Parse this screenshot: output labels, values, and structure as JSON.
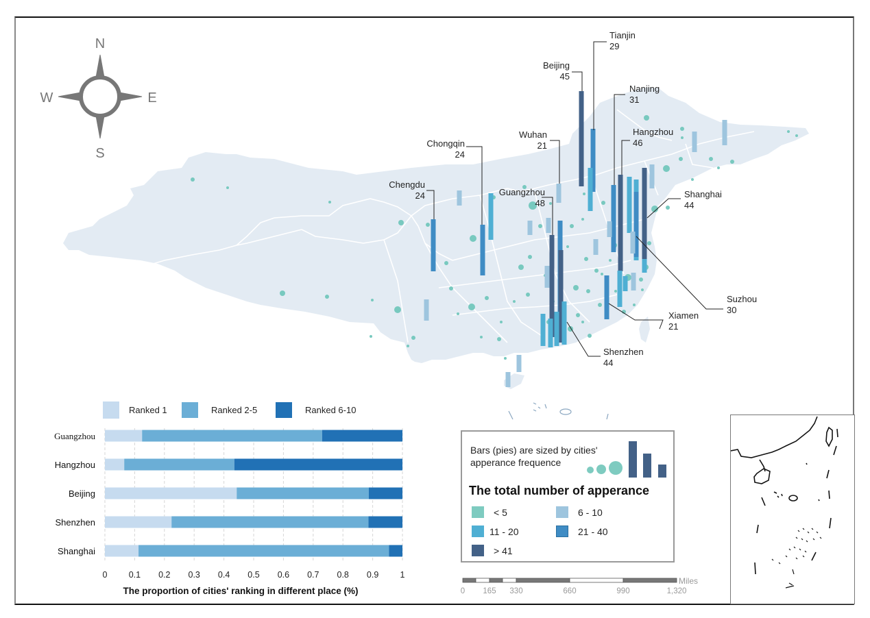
{
  "compass": {
    "north": "N",
    "south": "S",
    "east": "E",
    "west": "W"
  },
  "colors": {
    "land": "#e3ebf3",
    "border": "#ffffff",
    "dot": "#78c9bf",
    "lt5": "#7ecbc0",
    "r6_10": "#9ec5de",
    "r11_20": "#4fafd3",
    "r21_40": "#3f8cc4",
    "gt41": "#436187",
    "rank1": "#c6dbef",
    "rank2_5": "#6baed6",
    "rank6_10": "#2171b5"
  },
  "map": {
    "callouts": [
      {
        "name": "Tianjin",
        "value": "29"
      },
      {
        "name": "Beijing",
        "value": "45"
      },
      {
        "name": "Nanjing",
        "value": "31"
      },
      {
        "name": "Hangzhou",
        "value": "46"
      },
      {
        "name": "Wuhan",
        "value": "21"
      },
      {
        "name": "Chongqin",
        "value": "24"
      },
      {
        "name": "Chengdu",
        "value": "24"
      },
      {
        "name": "Guangzhou",
        "value": "48"
      },
      {
        "name": "Shanghai",
        "value": "44"
      },
      {
        "name": "Suzhou",
        "value": "30"
      },
      {
        "name": "Xiamen",
        "value": "21"
      },
      {
        "name": "Shenzhen",
        "value": "44"
      }
    ]
  },
  "legend": {
    "size_note": "Bars (pies) are sized by cities' apperance frequence",
    "title": "The total number of apperance",
    "items": [
      {
        "label": "< 5",
        "color_key": "lt5"
      },
      {
        "label": "6 - 10",
        "color_key": "r6_10"
      },
      {
        "label": "11 - 20",
        "color_key": "r11_20"
      },
      {
        "label": "21 - 40",
        "color_key": "r21_40"
      },
      {
        "label": "> 41",
        "color_key": "gt41"
      }
    ]
  },
  "scalebar": {
    "unit": "Miles",
    "ticks": [
      "0",
      "165",
      "330",
      "660",
      "990",
      "1,320"
    ]
  },
  "chart_data": {
    "type": "bar",
    "orientation": "horizontal-stacked",
    "title": "",
    "xlabel": "The proportion of  cities' ranking in different place (%)",
    "ylabel": "",
    "xlim": [
      0,
      1
    ],
    "xticks": [
      "0",
      "0.1",
      "0.2",
      "0.3",
      "0.4",
      "0.5",
      "0.6",
      "0.7",
      "0.8",
      "0.9",
      "1"
    ],
    "grid": "vertical dashed",
    "legend_position": "top",
    "categories": [
      "Guangzhou",
      "Hangzhou",
      "Beijing",
      "Shenzhen",
      "Shanghai"
    ],
    "series": [
      {
        "name": "Ranked 1",
        "values": [
          0.125,
          0.065,
          0.443,
          0.224,
          0.113
        ]
      },
      {
        "name": "Ranked 2-5",
        "values": [
          0.605,
          0.37,
          0.444,
          0.662,
          0.842
        ]
      },
      {
        "name": "Ranked 6-10",
        "values": [
          0.27,
          0.565,
          0.113,
          0.114,
          0.045
        ]
      }
    ]
  }
}
